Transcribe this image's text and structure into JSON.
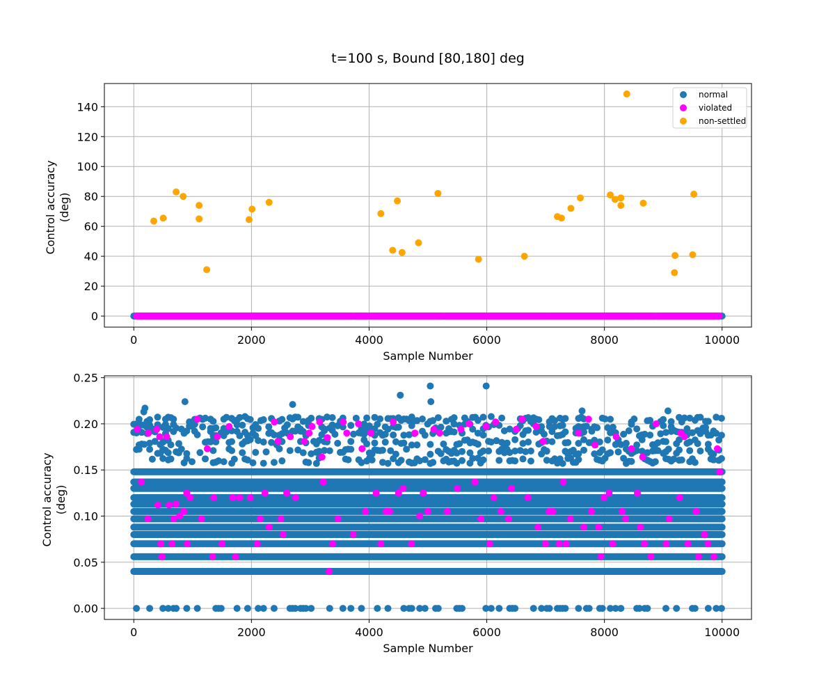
{
  "figure": {
    "title": "t=100 s, Bound [80,180] deg"
  },
  "colors": {
    "normal": "#1f77b4",
    "violated": "#ff00ff",
    "non_settled": "#ffa500",
    "grid": "#b0b0b0",
    "frame": "#000000"
  },
  "chart_data": [
    {
      "type": "scatter",
      "xlabel": "Sample Number",
      "ylabel": "Control accuracy\n(deg)",
      "xlim": [
        -500,
        10500
      ],
      "ylim": [
        -7.4,
        155.5
      ],
      "xticks": [
        0,
        2000,
        4000,
        6000,
        8000,
        10000
      ],
      "xtick_labels": [
        "0",
        "2000",
        "4000",
        "6000",
        "8000",
        "10000"
      ],
      "yticks": [
        0,
        20,
        40,
        60,
        80,
        100,
        120,
        140
      ],
      "ytick_labels": [
        "0",
        "20",
        "40",
        "60",
        "80",
        "100",
        "120",
        "140"
      ],
      "grid": true,
      "legend": {
        "position": "top-right",
        "entries": [
          {
            "label": "normal",
            "color": "#1f77b4"
          },
          {
            "label": "violated",
            "color": "#ff00ff"
          },
          {
            "label": "non-settled",
            "color": "#ffa500"
          }
        ]
      },
      "series": [
        {
          "name": "non-settled",
          "color": "#ffa500",
          "points": [
            [
              340,
              63.5
            ],
            [
              500,
              65.5
            ],
            [
              720,
              83
            ],
            [
              840,
              80
            ],
            [
              1110,
              74
            ],
            [
              1110,
              65
            ],
            [
              1240,
              31
            ],
            [
              1960,
              64.5
            ],
            [
              2010,
              71.5
            ],
            [
              2300,
              76
            ],
            [
              4200,
              68.5
            ],
            [
              4400,
              44
            ],
            [
              4480,
              77
            ],
            [
              4560,
              42.5
            ],
            [
              4840,
              49
            ],
            [
              5170,
              82
            ],
            [
              5860,
              38
            ],
            [
              6640,
              40
            ],
            [
              7200,
              66.5
            ],
            [
              7270,
              65.5
            ],
            [
              7430,
              72
            ],
            [
              7590,
              79
            ],
            [
              8100,
              81
            ],
            [
              8180,
              78
            ],
            [
              8280,
              79
            ],
            [
              8280,
              74
            ],
            [
              8380,
              148.5
            ],
            [
              8660,
              75.5
            ],
            [
              9190,
              29
            ],
            [
              9200,
              40.5
            ],
            [
              9500,
              41
            ],
            [
              9520,
              81.5
            ]
          ]
        },
        {
          "name": "normal",
          "color": "#1f77b4",
          "band": {
            "x_range": [
              0,
              10000
            ],
            "y": 0
          }
        },
        {
          "name": "violated",
          "color": "#ff00ff",
          "band": {
            "x_range": [
              50,
              9950
            ],
            "y": 0
          }
        }
      ]
    },
    {
      "type": "scatter",
      "xlabel": "Sample Number",
      "ylabel": "Control accuracy\n(deg)",
      "xlim": [
        -500,
        10500
      ],
      "ylim": [
        -0.012,
        0.252
      ],
      "xticks": [
        0,
        2000,
        4000,
        6000,
        8000,
        10000
      ],
      "xtick_labels": [
        "0",
        "2000",
        "4000",
        "6000",
        "8000",
        "10000"
      ],
      "yticks": [
        0.0,
        0.05,
        0.1,
        0.15,
        0.2,
        0.25
      ],
      "ytick_labels": [
        "0.00",
        "0.05",
        "0.10",
        "0.15",
        "0.20",
        "0.25"
      ],
      "grid": true,
      "series": [
        {
          "name": "normal",
          "color": "#1f77b4",
          "levels": [
            0.0,
            0.04,
            0.056,
            0.07,
            0.08,
            0.088,
            0.097,
            0.105,
            0.113,
            0.12,
            0.13,
            0.137,
            0.148,
            0.16,
            0.17,
            0.18,
            0.19,
            0.197,
            0.205
          ],
          "outliers": [
            [
              870,
              0.224
            ],
            [
              2700,
              0.221
            ],
            [
              4530,
              0.231
            ],
            [
              5040,
              0.241
            ],
            [
              5050,
              0.224
            ],
            [
              5990,
              0.241
            ],
            [
              7620,
              0.214
            ],
            [
              9080,
              0.214
            ],
            [
              190,
              0.217
            ],
            [
              170,
              0.213
            ]
          ]
        },
        {
          "name": "violated",
          "color": "#ff00ff",
          "points": [
            [
              60,
              0.194
            ],
            [
              130,
              0.137
            ],
            [
              240,
              0.097
            ],
            [
              250,
              0.19
            ],
            [
              390,
              0.194
            ],
            [
              410,
              0.112
            ],
            [
              440,
              0.186
            ],
            [
              460,
              0.07
            ],
            [
              480,
              0.056
            ],
            [
              560,
              0.186
            ],
            [
              600,
              0.112
            ],
            [
              650,
              0.07
            ],
            [
              680,
              0.097
            ],
            [
              720,
              0.113
            ],
            [
              780,
              0.1
            ],
            [
              850,
              0.105
            ],
            [
              900,
              0.125
            ],
            [
              910,
              0.07
            ],
            [
              960,
              0.12
            ],
            [
              1080,
              0.205
            ],
            [
              1150,
              0.097
            ],
            [
              1250,
              0.173
            ],
            [
              1340,
              0.056
            ],
            [
              1360,
              0.12
            ],
            [
              1420,
              0.186
            ],
            [
              1500,
              0.07
            ],
            [
              1620,
              0.197
            ],
            [
              1680,
              0.12
            ],
            [
              1730,
              0.056
            ],
            [
              1800,
              0.12
            ],
            [
              1980,
              0.12
            ],
            [
              2100,
              0.07
            ],
            [
              2150,
              0.097
            ],
            [
              2230,
              0.125
            ],
            [
              2300,
              0.088
            ],
            [
              2390,
              0.202
            ],
            [
              2450,
              0.181
            ],
            [
              2500,
              0.097
            ],
            [
              2540,
              0.08
            ],
            [
              2600,
              0.125
            ],
            [
              2660,
              0.186
            ],
            [
              2750,
              0.12
            ],
            [
              2900,
              0.181
            ],
            [
              2980,
              0.19
            ],
            [
              3030,
              0.197
            ],
            [
              3160,
              0.202
            ],
            [
              3200,
              0.164
            ],
            [
              3220,
              0.137
            ],
            [
              3290,
              0.185
            ],
            [
              3320,
              0.04
            ],
            [
              3380,
              0.07
            ],
            [
              3470,
              0.097
            ],
            [
              3560,
              0.202
            ],
            [
              3620,
              0.19
            ],
            [
              3730,
              0.08
            ],
            [
              3820,
              0.2
            ],
            [
              3880,
              0.173
            ],
            [
              3940,
              0.105
            ],
            [
              4030,
              0.19
            ],
            [
              4120,
              0.125
            ],
            [
              4200,
              0.07
            ],
            [
              4290,
              0.105
            ],
            [
              4350,
              0.105
            ],
            [
              4410,
              0.202
            ],
            [
              4500,
              0.125
            ],
            [
              4580,
              0.13
            ],
            [
              4720,
              0.07
            ],
            [
              4780,
              0.19
            ],
            [
              4860,
              0.1
            ],
            [
              4920,
              0.125
            ],
            [
              5000,
              0.105
            ],
            [
              5100,
              0.194
            ],
            [
              5200,
              0.19
            ],
            [
              5330,
              0.105
            ],
            [
              5500,
              0.13
            ],
            [
              5560,
              0.194
            ],
            [
              5700,
              0.2
            ],
            [
              5800,
              0.137
            ],
            [
              5900,
              0.097
            ],
            [
              5990,
              0.197
            ],
            [
              6050,
              0.07
            ],
            [
              6120,
              0.12
            ],
            [
              6150,
              0.202
            ],
            [
              6240,
              0.105
            ],
            [
              6370,
              0.097
            ],
            [
              6420,
              0.13
            ],
            [
              6500,
              0.194
            ],
            [
              6600,
              0.205
            ],
            [
              6700,
              0.12
            ],
            [
              6840,
              0.197
            ],
            [
              6870,
              0.088
            ],
            [
              6960,
              0.181
            ],
            [
              7000,
              0.07
            ],
            [
              7060,
              0.105
            ],
            [
              7120,
              0.105
            ],
            [
              7230,
              0.07
            ],
            [
              7300,
              0.137
            ],
            [
              7350,
              0.07
            ],
            [
              7420,
              0.097
            ],
            [
              7560,
              0.19
            ],
            [
              7650,
              0.088
            ],
            [
              7730,
              0.205
            ],
            [
              7780,
              0.105
            ],
            [
              7840,
              0.177
            ],
            [
              7900,
              0.088
            ],
            [
              7940,
              0.056
            ],
            [
              7990,
              0.12
            ],
            [
              8080,
              0.125
            ],
            [
              8140,
              0.07
            ],
            [
              8200,
              0.186
            ],
            [
              8300,
              0.105
            ],
            [
              8360,
              0.097
            ],
            [
              8460,
              0.173
            ],
            [
              8560,
              0.125
            ],
            [
              8610,
              0.088
            ],
            [
              8650,
              0.164
            ],
            [
              8680,
              0.07
            ],
            [
              8790,
              0.056
            ],
            [
              8880,
              0.2
            ],
            [
              9050,
              0.07
            ],
            [
              9100,
              0.097
            ],
            [
              9280,
              0.12
            ],
            [
              9300,
              0.19
            ],
            [
              9360,
              0.186
            ],
            [
              9420,
              0.07
            ],
            [
              9560,
              0.105
            ],
            [
              9600,
              0.056
            ],
            [
              9700,
              0.08
            ],
            [
              9760,
              0.07
            ],
            [
              9860,
              0.056
            ],
            [
              9920,
              0.173
            ],
            [
              9960,
              0.148
            ]
          ]
        }
      ]
    }
  ]
}
